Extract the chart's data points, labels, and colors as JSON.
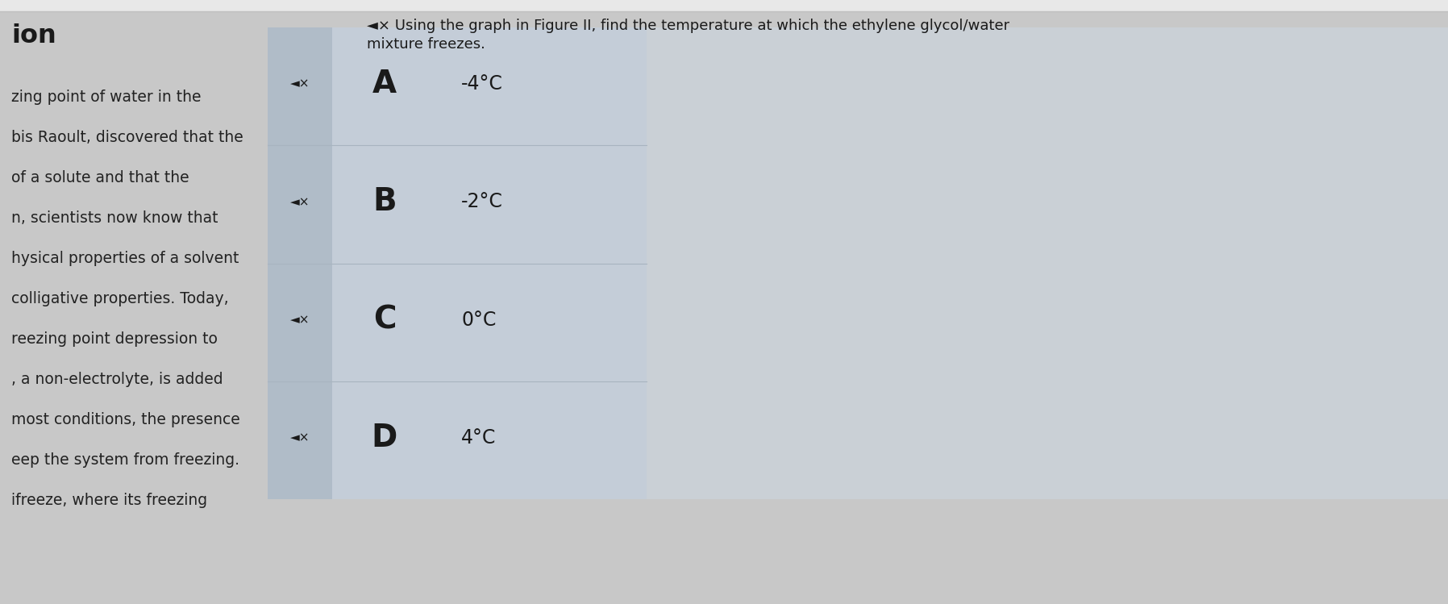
{
  "title_line1": "◄× Using the graph in Figure II, find the temperature at which the ethylene glycol/water",
  "title_line2": "mixture freezes.",
  "left_text_lines": [
    "zing point of water in the",
    "bis Raoult, discovered that the",
    "of a solute and that the",
    "n, scientists now know that",
    "hysical properties of a solvent",
    "colligative properties. Today,",
    "reezing point depression to",
    ", a non-electrolyte, is added",
    "most conditions, the presence",
    "eep the system from freezing.",
    "ifreeze, where its freezing"
  ],
  "partial_left_text": "ion",
  "options": [
    {
      "label": "A",
      "text": "-4°C"
    },
    {
      "label": "B",
      "text": "-2°C"
    },
    {
      "label": "C",
      "text": "0°C"
    },
    {
      "label": "D",
      "text": "4°C"
    }
  ],
  "bg_color": "#c8c8c8",
  "panel_bg_color": "#c4cdd8",
  "speaker_col_color": "#b0bcc8",
  "grid_line_color": "#a8b4c0",
  "text_color": "#1a1a1a",
  "title_color": "#1a1a1a",
  "left_text_color": "#222222",
  "figwidth": 17.96,
  "figheight": 7.49,
  "top_bar_color": "#e0e0e0",
  "dpi": 100
}
